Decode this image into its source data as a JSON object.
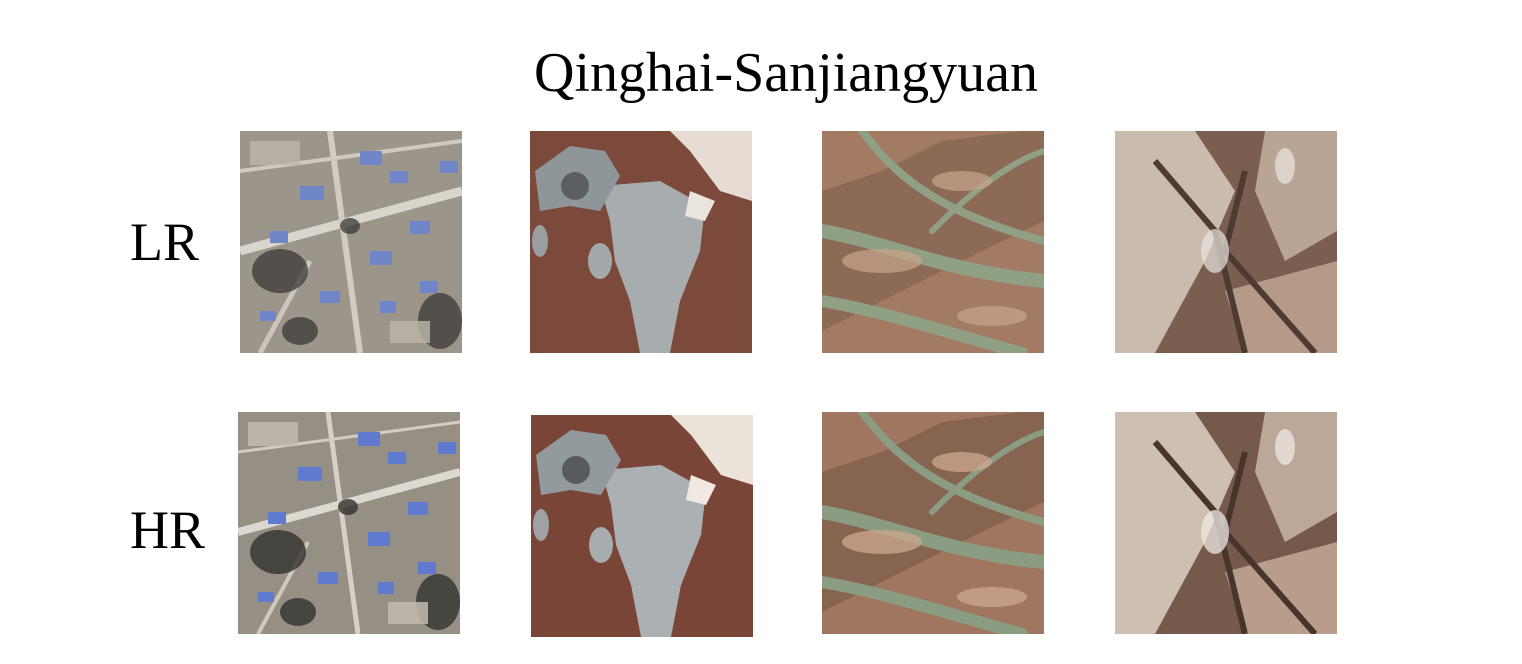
{
  "figure": {
    "title": "Qinghai-Sanjiangyuan",
    "rows": [
      {
        "label": "LR"
      },
      {
        "label": "HR"
      }
    ],
    "tiles": [
      {
        "content": "village-buildings-blue-roofs"
      },
      {
        "content": "salt-flat-on-brown-soil"
      },
      {
        "content": "braided-river-channels"
      },
      {
        "content": "eroded-mountain-ridges"
      }
    ]
  }
}
